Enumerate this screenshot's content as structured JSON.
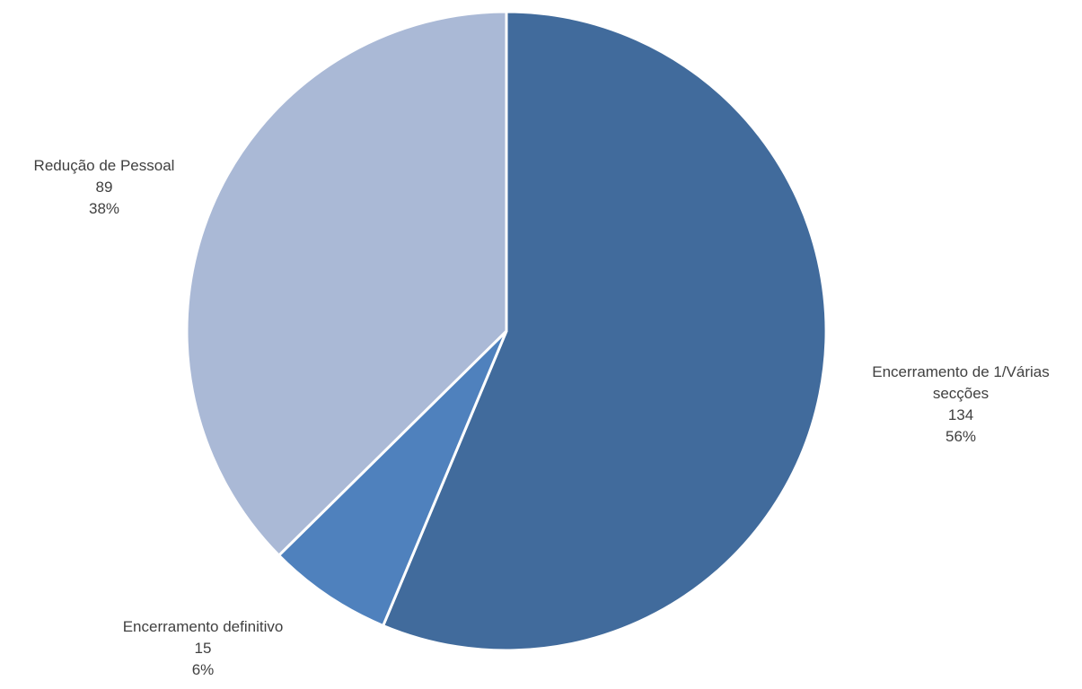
{
  "chart_data": {
    "type": "pie",
    "start_angle_deg": 0,
    "direction": "clockwise",
    "slices": [
      {
        "name": "Encerramento de 1/Várias secções",
        "label_lines": [
          "Encerramento de 1/Várias",
          "secções",
          "134",
          "56%"
        ],
        "value": 134,
        "percent": "56%",
        "color": "#416b9c"
      },
      {
        "name": "Encerramento definitivo",
        "label_lines": [
          "Encerramento definitivo",
          "15",
          "6%"
        ],
        "value": 15,
        "percent": "6%",
        "color": "#4f81bd"
      },
      {
        "name": "Redução de Pessoal",
        "label_lines": [
          "Redução de Pessoal",
          "89",
          "38%"
        ],
        "value": 89,
        "percent": "38%",
        "color": "#aab9d6"
      }
    ],
    "slice_border_color": "#ffffff",
    "label_color": "#404040"
  }
}
